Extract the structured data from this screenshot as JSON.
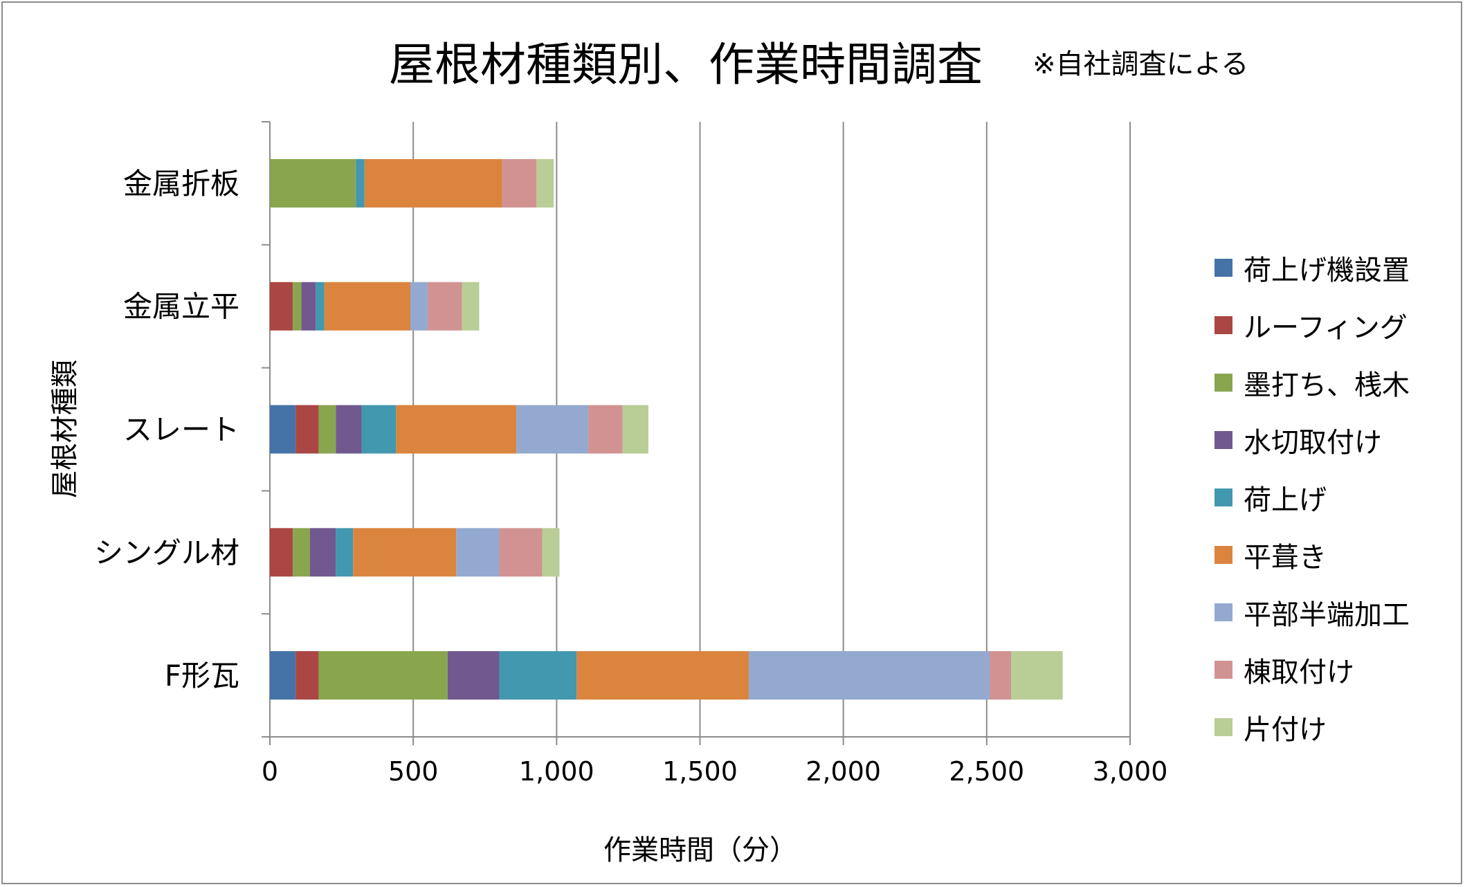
{
  "title": "屋根材種類別、作業時間調査",
  "note": "※自社調査による",
  "chart_data": {
    "type": "bar",
    "orientation": "horizontal",
    "stacked": true,
    "categories": [
      "金属折板",
      "金属立平",
      "スレート",
      "シングル材",
      "F形瓦"
    ],
    "series": [
      {
        "name": "荷上げ機設置",
        "color": "#4572A7",
        "values": [
          0,
          0,
          90,
          0,
          90
        ]
      },
      {
        "name": "ルーフィング",
        "color": "#AA4643",
        "values": [
          0,
          80,
          80,
          80,
          80
        ]
      },
      {
        "name": "墨打ち、桟木",
        "color": "#89A54E",
        "values": [
          300,
          30,
          60,
          60,
          450
        ]
      },
      {
        "name": "水切取付け",
        "color": "#71588F",
        "values": [
          0,
          50,
          90,
          90,
          180
        ]
      },
      {
        "name": "荷上げ",
        "color": "#4198AF",
        "values": [
          30,
          30,
          120,
          60,
          270
        ]
      },
      {
        "name": "平葺き",
        "color": "#DB843D",
        "values": [
          480,
          300,
          420,
          360,
          600
        ]
      },
      {
        "name": "平部半端加工",
        "color": "#93A9CF",
        "values": [
          0,
          60,
          250,
          150,
          840
        ]
      },
      {
        "name": "棟取付け",
        "color": "#D19392",
        "values": [
          120,
          120,
          120,
          150,
          75
        ]
      },
      {
        "name": "片付け",
        "color": "#B9CD96",
        "values": [
          60,
          60,
          90,
          60,
          180
        ]
      }
    ],
    "xlim": [
      0,
      3000
    ],
    "xticks": [
      "0",
      "500",
      "1,000",
      "1,500",
      "2,000",
      "2,500",
      "3,000"
    ],
    "xlabel": "作業時間（分）",
    "ylabel": "屋根材種類",
    "grid": "vertical",
    "legend": "right"
  }
}
